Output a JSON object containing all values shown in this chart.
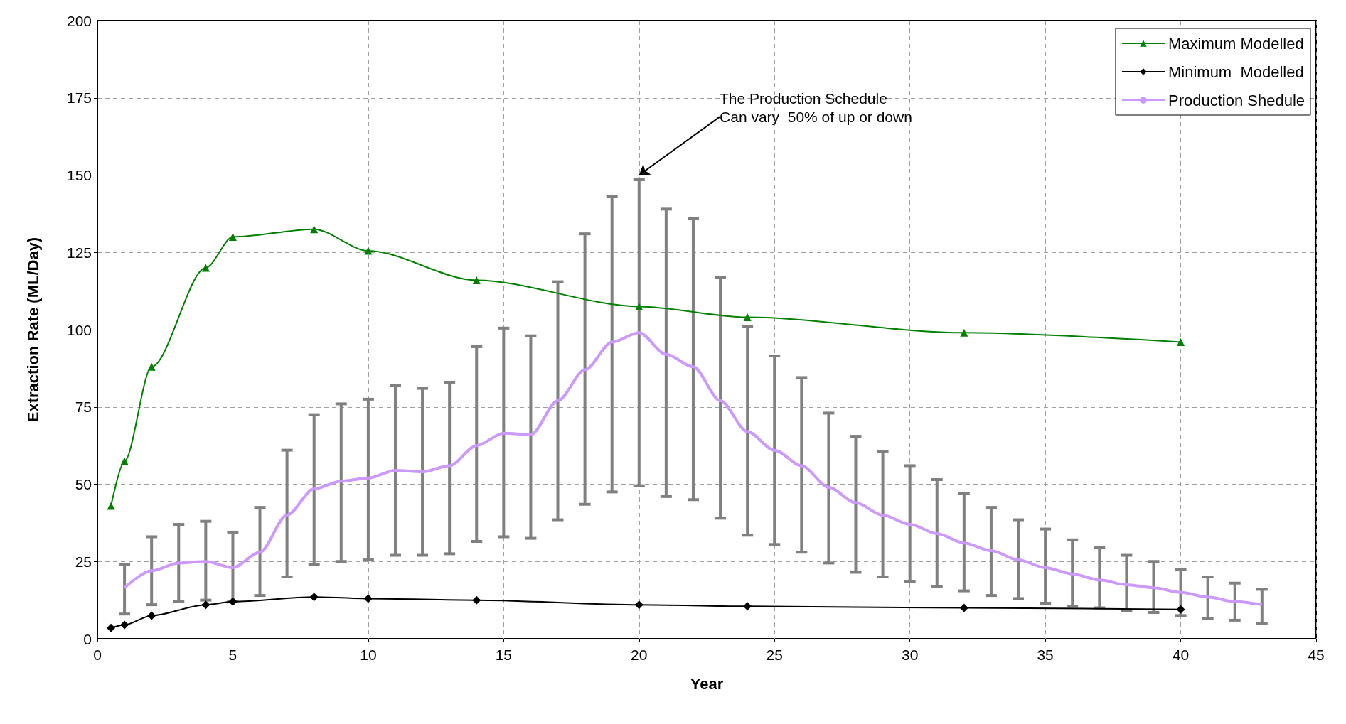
{
  "chart_data": {
    "type": "line",
    "xlabel": "Year",
    "ylabel": "Extraction Rate (ML/Day)",
    "xlim": [
      0,
      45
    ],
    "xticks": [
      0,
      5,
      10,
      15,
      20,
      25,
      30,
      35,
      40,
      45
    ],
    "ylim": [
      0,
      200
    ],
    "yticks": [
      0,
      25,
      50,
      75,
      100,
      125,
      150,
      175,
      200
    ],
    "grid": true,
    "legend": "top right",
    "annotations": [
      {
        "text": "The Production Schedule\nCan vary  50% of up or down",
        "x": 20,
        "y": 150
      }
    ],
    "series": [
      {
        "name": "Maximum Modelled",
        "color": "#008000",
        "marker": "triangle",
        "x": [
          0.5,
          1,
          2,
          4,
          5,
          8,
          10,
          14,
          20,
          24,
          32,
          40
        ],
        "values": [
          43,
          57.5,
          88,
          120,
          130,
          132.5,
          125.5,
          116,
          107.5,
          104,
          99,
          96
        ]
      },
      {
        "name": "Minimum  Modelled",
        "color": "#000000",
        "marker": "diamond",
        "x": [
          0.5,
          1,
          2,
          4,
          5,
          8,
          10,
          14,
          20,
          24,
          32,
          40
        ],
        "values": [
          3.5,
          4.5,
          7.5,
          11,
          12,
          13.5,
          13,
          12.5,
          11,
          10.5,
          10,
          9.5
        ]
      },
      {
        "name": "Production Shedule",
        "color": "#cc99ff",
        "marker": "none",
        "x": [
          1,
          2,
          3,
          4,
          5,
          6,
          7,
          8,
          9,
          10,
          11,
          12,
          13,
          14,
          15,
          16,
          17,
          18,
          19,
          20,
          21,
          22,
          23,
          24,
          25,
          26,
          27,
          28,
          29,
          30,
          31,
          32,
          33,
          34,
          35,
          36,
          37,
          38,
          39,
          40,
          41,
          42,
          43
        ],
        "values": [
          16.5,
          22,
          24.5,
          25,
          23,
          28,
          40,
          48.5,
          51,
          52,
          54.5,
          54,
          56,
          62.5,
          66.5,
          66,
          77,
          87,
          96,
          99,
          92,
          88,
          77,
          67,
          61,
          56,
          49,
          44,
          40,
          37,
          34,
          31,
          28.5,
          25.5,
          23,
          21,
          19,
          17.5,
          16.5,
          15,
          13.5,
          12,
          11
        ],
        "errors": [
          [
            8,
            24
          ],
          [
            11,
            33
          ],
          [
            12,
            37
          ],
          [
            12.5,
            38
          ],
          [
            12,
            34.5
          ],
          [
            14,
            42.5
          ],
          [
            20,
            61
          ],
          [
            24,
            72.5
          ],
          [
            25,
            76
          ],
          [
            25.5,
            77.5
          ],
          [
            27,
            82
          ],
          [
            27,
            81
          ],
          [
            27.5,
            83
          ],
          [
            31.5,
            94.5
          ],
          [
            33,
            100.5
          ],
          [
            32.5,
            98
          ],
          [
            38.5,
            115.5
          ],
          [
            43.5,
            131
          ],
          [
            47.5,
            143
          ],
          [
            49.5,
            148.5
          ],
          [
            46,
            139
          ],
          [
            45,
            136
          ],
          [
            39,
            117
          ],
          [
            33.5,
            101
          ],
          [
            30.5,
            91.5
          ],
          [
            28,
            84.5
          ],
          [
            24.5,
            73
          ],
          [
            21.5,
            65.5
          ],
          [
            20,
            60.5
          ],
          [
            18.5,
            56
          ],
          [
            17,
            51.5
          ],
          [
            15.5,
            47
          ],
          [
            14,
            42.5
          ],
          [
            13,
            38.5
          ],
          [
            11.5,
            35.5
          ],
          [
            10.5,
            32
          ],
          [
            10,
            29.5
          ],
          [
            9,
            27
          ],
          [
            8.5,
            25
          ],
          [
            7.5,
            22.5
          ],
          [
            6.5,
            20
          ],
          [
            6,
            18
          ],
          [
            5,
            16
          ]
        ]
      }
    ]
  }
}
